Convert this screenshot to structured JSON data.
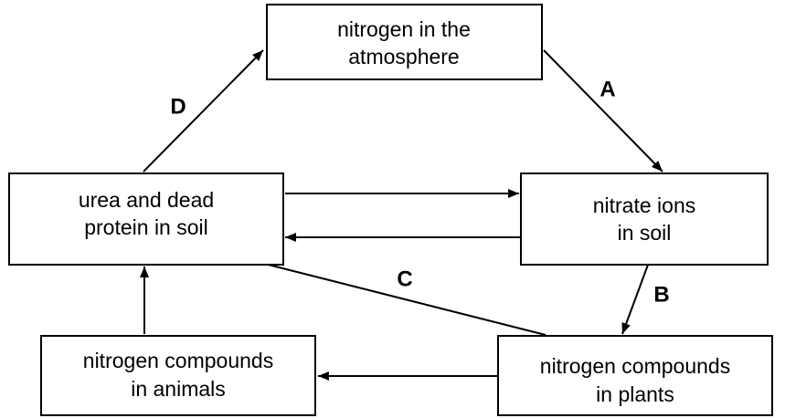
{
  "nodes": [
    {
      "lines": [
        "nitrogen in the",
        "atmosphere"
      ]
    },
    {
      "lines": [
        "urea and dead",
        "protein in soil"
      ]
    },
    {
      "lines": [
        "nitrate ions",
        "in soil"
      ]
    },
    {
      "lines": [
        "nitrogen compounds",
        "in animals"
      ]
    },
    {
      "lines": [
        "nitrogen compounds",
        "in plants"
      ]
    }
  ],
  "edge_labels": [
    "A",
    "B",
    "C",
    "D"
  ]
}
